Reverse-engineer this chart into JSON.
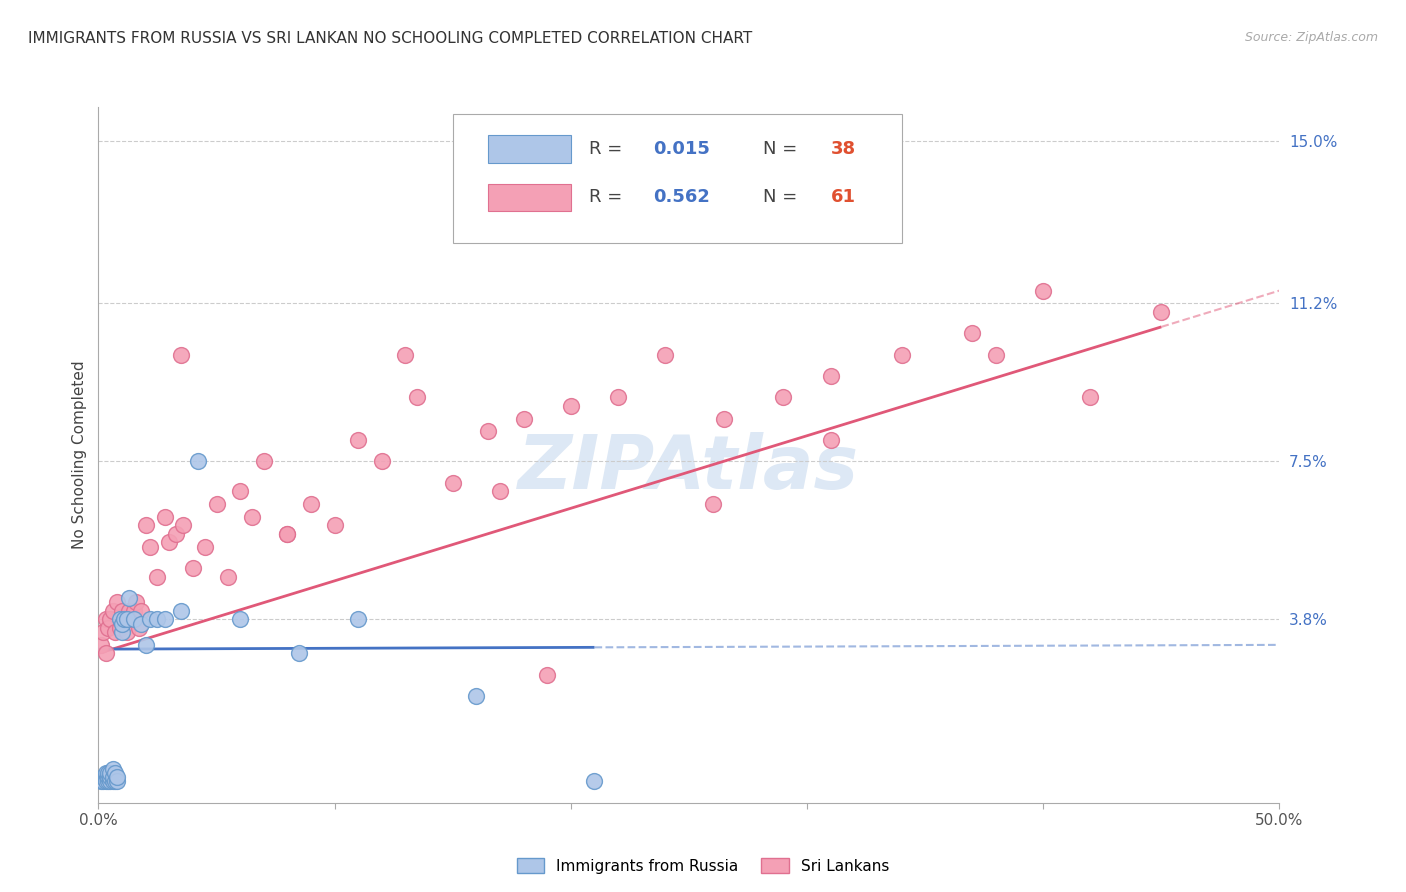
{
  "title": "IMMIGRANTS FROM RUSSIA VS SRI LANKAN NO SCHOOLING COMPLETED CORRELATION CHART",
  "source": "Source: ZipAtlas.com",
  "ylabel": "No Schooling Completed",
  "xlim": [
    0.0,
    0.5
  ],
  "ylim": [
    -0.005,
    0.158
  ],
  "ytick_right_vals": [
    0.038,
    0.075,
    0.112,
    0.15
  ],
  "ytick_right_labels": [
    "3.8%",
    "7.5%",
    "11.2%",
    "15.0%"
  ],
  "russia_color": "#aec6e8",
  "russia_edge_color": "#6699cc",
  "srilanka_color": "#f4a0b5",
  "srilanka_edge_color": "#e07090",
  "russia_trend_color": "#4472c4",
  "srilanka_trend_color": "#e05878",
  "russia_scatter_x": [
    0.001,
    0.002,
    0.002,
    0.003,
    0.003,
    0.003,
    0.004,
    0.004,
    0.004,
    0.005,
    0.005,
    0.005,
    0.006,
    0.006,
    0.006,
    0.007,
    0.007,
    0.008,
    0.008,
    0.009,
    0.01,
    0.01,
    0.011,
    0.012,
    0.013,
    0.015,
    0.018,
    0.02,
    0.022,
    0.025,
    0.028,
    0.035,
    0.042,
    0.06,
    0.085,
    0.11,
    0.16,
    0.21
  ],
  "russia_scatter_y": [
    0.0,
    0.0,
    0.001,
    0.001,
    0.002,
    0.0,
    0.0,
    0.001,
    0.002,
    0.0,
    0.001,
    0.002,
    0.0,
    0.001,
    0.003,
    0.0,
    0.002,
    0.0,
    0.001,
    0.038,
    0.035,
    0.037,
    0.038,
    0.038,
    0.043,
    0.038,
    0.037,
    0.032,
    0.038,
    0.038,
    0.038,
    0.04,
    0.075,
    0.038,
    0.03,
    0.038,
    0.02,
    0.0
  ],
  "srilanka_scatter_x": [
    0.001,
    0.002,
    0.003,
    0.003,
    0.004,
    0.005,
    0.006,
    0.007,
    0.008,
    0.009,
    0.01,
    0.011,
    0.012,
    0.013,
    0.014,
    0.015,
    0.016,
    0.017,
    0.018,
    0.02,
    0.022,
    0.025,
    0.028,
    0.03,
    0.033,
    0.036,
    0.04,
    0.045,
    0.05,
    0.055,
    0.06,
    0.065,
    0.07,
    0.08,
    0.09,
    0.1,
    0.11,
    0.12,
    0.135,
    0.15,
    0.165,
    0.18,
    0.2,
    0.22,
    0.24,
    0.265,
    0.29,
    0.31,
    0.34,
    0.37,
    0.4,
    0.42,
    0.45,
    0.31,
    0.19,
    0.26,
    0.38,
    0.17,
    0.13,
    0.08,
    0.035
  ],
  "srilanka_scatter_y": [
    0.032,
    0.035,
    0.03,
    0.038,
    0.036,
    0.038,
    0.04,
    0.035,
    0.042,
    0.036,
    0.04,
    0.038,
    0.035,
    0.04,
    0.038,
    0.04,
    0.042,
    0.036,
    0.04,
    0.06,
    0.055,
    0.048,
    0.062,
    0.056,
    0.058,
    0.06,
    0.05,
    0.055,
    0.065,
    0.048,
    0.068,
    0.062,
    0.075,
    0.058,
    0.065,
    0.06,
    0.08,
    0.075,
    0.09,
    0.07,
    0.082,
    0.085,
    0.088,
    0.09,
    0.1,
    0.085,
    0.09,
    0.095,
    0.1,
    0.105,
    0.115,
    0.09,
    0.11,
    0.08,
    0.025,
    0.065,
    0.1,
    0.068,
    0.1,
    0.058,
    0.1
  ],
  "grid_color": "#cccccc",
  "background_color": "#ffffff",
  "watermark_color": "#dde8f5",
  "title_fontsize": 11,
  "axis_label_fontsize": 11,
  "tick_fontsize": 11,
  "legend_fontsize": 12,
  "russia_trend_intercept": 0.031,
  "russia_trend_slope": 0.002,
  "srilanka_trend_intercept": 0.03,
  "srilanka_trend_slope": 0.17
}
